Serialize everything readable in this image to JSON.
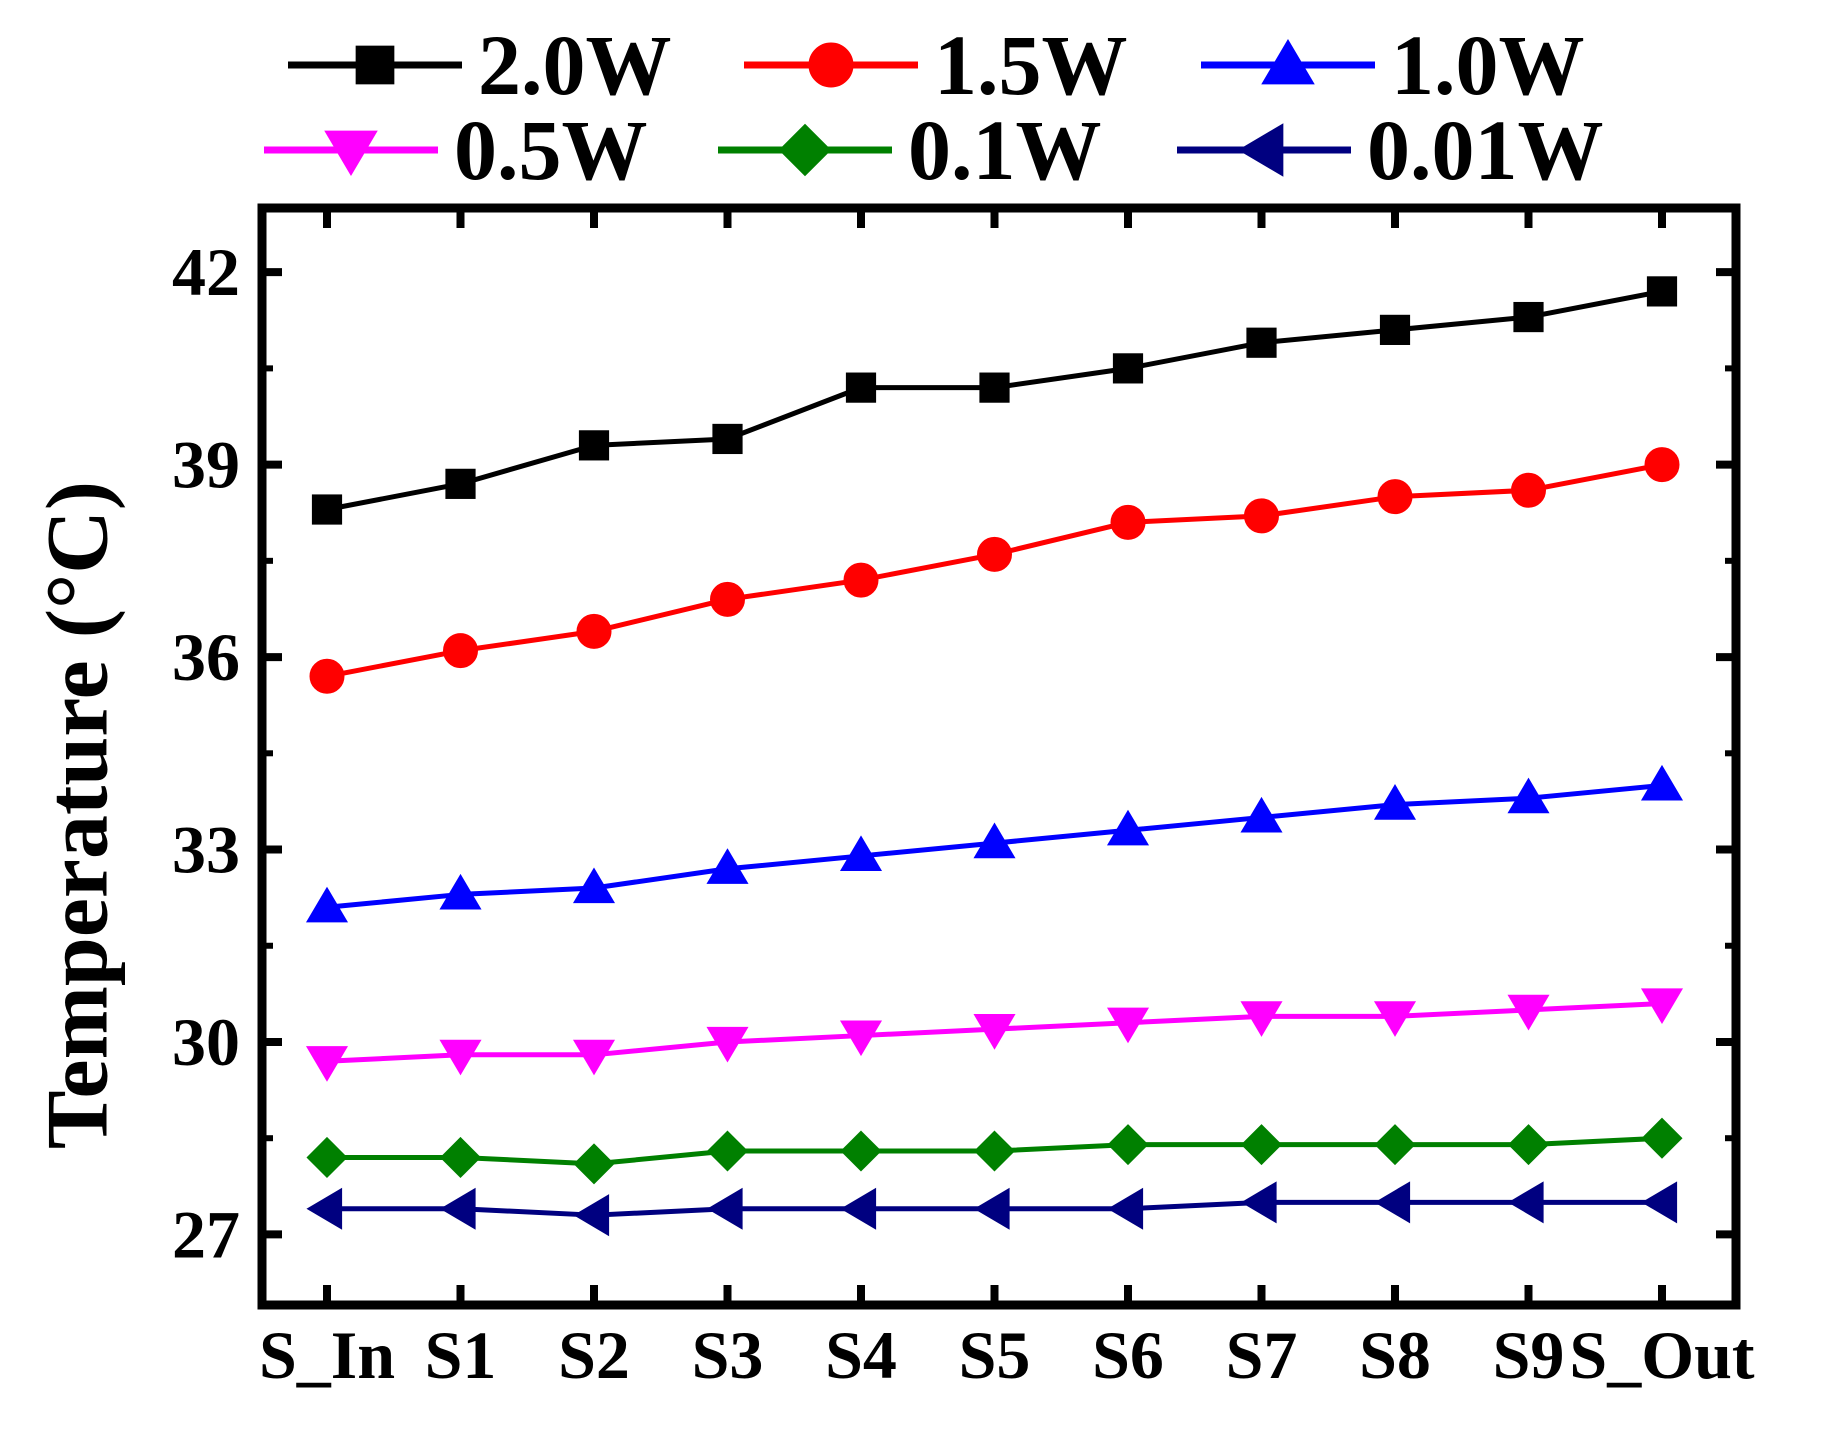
{
  "chart_data": {
    "type": "line",
    "title": "",
    "xlabel": "",
    "ylabel": "Temperature (°C)",
    "categories": [
      "S_In",
      "S1",
      "S2",
      "S3",
      "S4",
      "S5",
      "S6",
      "S7",
      "S8",
      "S9",
      "S_Out"
    ],
    "ylim": [
      25.9,
      43.0
    ],
    "yticks": [
      27,
      30,
      33,
      36,
      39,
      42
    ],
    "grid": false,
    "legend_position": "top",
    "series": [
      {
        "name": "2.0W",
        "color": "#000000",
        "marker": "square",
        "values": [
          38.3,
          38.7,
          39.3,
          39.4,
          40.2,
          40.2,
          40.5,
          40.9,
          41.1,
          41.3,
          41.7
        ]
      },
      {
        "name": "1.5W",
        "color": "#ff0000",
        "marker": "circle",
        "values": [
          35.7,
          36.1,
          36.4,
          36.9,
          37.2,
          37.6,
          38.1,
          38.2,
          38.5,
          38.6,
          39.0
        ]
      },
      {
        "name": "1.0W",
        "color": "#0000ff",
        "marker": "triangle-up",
        "values": [
          32.1,
          32.3,
          32.4,
          32.7,
          32.9,
          33.1,
          33.3,
          33.5,
          33.7,
          33.8,
          34.0
        ]
      },
      {
        "name": "0.5W",
        "color": "#ff00ff",
        "marker": "triangle-down",
        "values": [
          29.7,
          29.8,
          29.8,
          30.0,
          30.1,
          30.2,
          30.3,
          30.4,
          30.4,
          30.5,
          30.6
        ]
      },
      {
        "name": "0.1W",
        "color": "#008000",
        "marker": "diamond",
        "values": [
          28.2,
          28.2,
          28.1,
          28.3,
          28.3,
          28.3,
          28.4,
          28.4,
          28.4,
          28.4,
          28.5
        ]
      },
      {
        "name": "0.01W",
        "color": "#000080",
        "marker": "triangle-left",
        "values": [
          27.4,
          27.4,
          27.3,
          27.4,
          27.4,
          27.4,
          27.4,
          27.5,
          27.5,
          27.5,
          27.5
        ]
      }
    ]
  }
}
